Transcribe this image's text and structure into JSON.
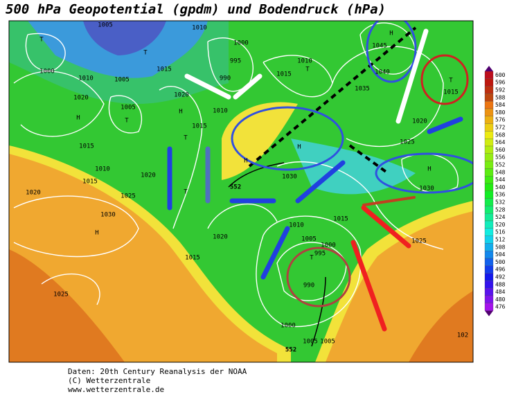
{
  "header": {
    "title": "500 hPa Geopotential (gpdm) und Bodendruck (hPa)"
  },
  "map": {
    "pressure_labels": [
      "1005",
      "1010",
      "1000",
      "995",
      "990",
      "1015",
      "1000",
      "1010",
      "1005",
      "1020",
      "1020",
      "1005",
      "1010",
      "1015",
      "1015",
      "1010",
      "1020",
      "1015",
      "1025",
      "1020",
      "1030",
      "1020",
      "1015",
      "1025",
      "1015",
      "1010",
      "1045",
      "1040",
      "1035",
      "1015",
      "1020",
      "1025",
      "1030",
      "1030",
      "1010",
      "1015",
      "1005",
      "1000",
      "995",
      "990",
      "1025",
      "1000",
      "1005",
      "1005",
      "102"
    ],
    "centers": [
      "T",
      "T",
      "H",
      "T",
      "H",
      "T",
      "H",
      "T",
      "H",
      "H",
      "T",
      "H",
      "T",
      "H",
      "T"
    ],
    "contour_labels": [
      "552",
      "552"
    ]
  },
  "colorbar": {
    "ticks": [
      600,
      596,
      592,
      588,
      584,
      580,
      576,
      572,
      568,
      564,
      560,
      556,
      552,
      548,
      544,
      540,
      536,
      532,
      528,
      524,
      520,
      516,
      512,
      508,
      504,
      500,
      496,
      492,
      488,
      484,
      480,
      476
    ]
  },
  "footer": {
    "lines": [
      "Daten: 20th Century Reanalysis der NOAA",
      "(C) Wetterzentrale",
      "www.wetterzentrale.de"
    ]
  }
}
